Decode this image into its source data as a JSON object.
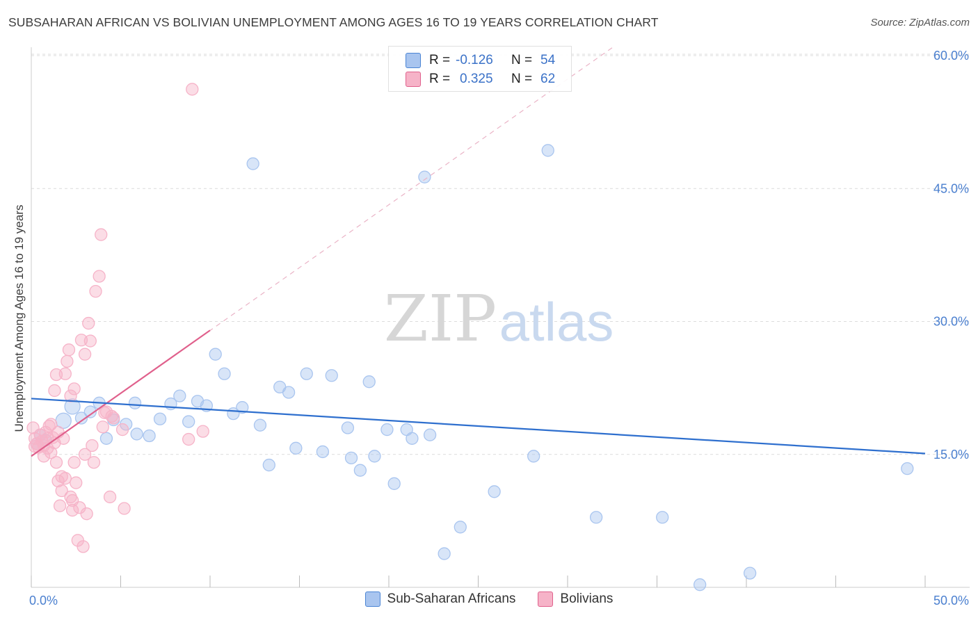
{
  "header": {
    "title": "SUBSAHARAN AFRICAN VS BOLIVIAN UNEMPLOYMENT AMONG AGES 16 TO 19 YEARS CORRELATION CHART",
    "source": "Source: ZipAtlas.com"
  },
  "watermark": {
    "zip": "ZIP",
    "atlas": "atlas"
  },
  "legend": {
    "r_label": "R =",
    "n_label": "N =",
    "rows": [
      {
        "r": "-0.126",
        "n": "54",
        "color": "#a9c5ef"
      },
      {
        "r": "0.325",
        "n": "62",
        "color": "#f6b3c8"
      }
    ]
  },
  "bottom_legend": [
    {
      "label": "Sub-Saharan Africans",
      "color": "#a9c5ef"
    },
    {
      "label": "Bolivians",
      "color": "#f6b3c8"
    }
  ],
  "chart_data": {
    "type": "scatter",
    "title": "SUBSAHARAN AFRICAN VS BOLIVIAN UNEMPLOYMENT AMONG AGES 16 TO 19 YEARS CORRELATION CHART",
    "xlabel": "",
    "ylabel": "Unemployment Among Ages 16 to 19 years",
    "xlim": [
      0,
      50
    ],
    "ylim": [
      0,
      63
    ],
    "x_tick_labels": [
      "0.0%",
      "50.0%"
    ],
    "y_ticks": [
      15,
      30,
      45,
      60
    ],
    "y_tick_labels": [
      "15.0%",
      "30.0%",
      "45.0%",
      "60.0%"
    ],
    "grid": true,
    "series": [
      {
        "name": "Sub-Saharan Africans",
        "color": "#4a84d4",
        "fill": "#a9c5ef",
        "regression": {
          "x": [
            0,
            50
          ],
          "y": [
            21.3,
            15.1
          ]
        },
        "points": [
          [
            0.3,
            16.2
          ],
          [
            0.5,
            17.2
          ],
          [
            0.8,
            16.6
          ],
          [
            1.8,
            18.8
          ],
          [
            2.3,
            20.4
          ],
          [
            2.8,
            19.1
          ],
          [
            3.3,
            19.8
          ],
          [
            3.8,
            20.8
          ],
          [
            4.2,
            16.8
          ],
          [
            4.6,
            18.9
          ],
          [
            5.3,
            18.4
          ],
          [
            5.8,
            20.8
          ],
          [
            5.9,
            17.3
          ],
          [
            6.6,
            17.1
          ],
          [
            7.2,
            19.0
          ],
          [
            7.8,
            20.7
          ],
          [
            8.3,
            21.6
          ],
          [
            8.8,
            18.7
          ],
          [
            9.3,
            21.0
          ],
          [
            9.8,
            20.5
          ],
          [
            10.3,
            26.3
          ],
          [
            10.8,
            24.1
          ],
          [
            11.3,
            19.6
          ],
          [
            11.8,
            20.3
          ],
          [
            12.4,
            47.8
          ],
          [
            12.8,
            18.3
          ],
          [
            13.3,
            13.8
          ],
          [
            13.9,
            22.6
          ],
          [
            14.4,
            22.0
          ],
          [
            14.8,
            15.7
          ],
          [
            15.4,
            24.1
          ],
          [
            16.3,
            15.3
          ],
          [
            16.8,
            23.9
          ],
          [
            17.7,
            18.0
          ],
          [
            17.9,
            14.6
          ],
          [
            18.4,
            13.2
          ],
          [
            18.9,
            23.2
          ],
          [
            19.2,
            14.8
          ],
          [
            19.9,
            17.8
          ],
          [
            20.3,
            11.7
          ],
          [
            21.0,
            17.8
          ],
          [
            21.3,
            16.8
          ],
          [
            22.0,
            46.3
          ],
          [
            22.3,
            17.2
          ],
          [
            23.1,
            3.8
          ],
          [
            24.0,
            6.8
          ],
          [
            25.9,
            10.8
          ],
          [
            28.1,
            14.8
          ],
          [
            28.9,
            49.3
          ],
          [
            31.6,
            7.9
          ],
          [
            35.3,
            7.9
          ],
          [
            37.4,
            0.3
          ],
          [
            40.2,
            1.6
          ],
          [
            49.0,
            13.4
          ]
        ]
      },
      {
        "name": "Bolivians",
        "color": "#e0608c",
        "fill": "#f6b3c8",
        "regression": {
          "x": [
            0,
            10
          ],
          "y": [
            14.8,
            29.0
          ]
        },
        "regression_extended": {
          "x": [
            0,
            32.5
          ],
          "y": [
            14.8,
            60.9
          ]
        },
        "points": [
          [
            0.1,
            18.0
          ],
          [
            0.2,
            16.8
          ],
          [
            0.3,
            16.2
          ],
          [
            0.4,
            15.8
          ],
          [
            0.5,
            17.2
          ],
          [
            0.6,
            16.5
          ],
          [
            0.7,
            14.8
          ],
          [
            0.7,
            16.0
          ],
          [
            0.8,
            17.5
          ],
          [
            0.9,
            16.8
          ],
          [
            1.0,
            18.2
          ],
          [
            1.1,
            18.4
          ],
          [
            1.2,
            16.9
          ],
          [
            1.3,
            16.3
          ],
          [
            1.3,
            22.2
          ],
          [
            1.4,
            24.0
          ],
          [
            1.4,
            14.1
          ],
          [
            1.5,
            17.5
          ],
          [
            1.5,
            12.0
          ],
          [
            1.6,
            9.2
          ],
          [
            1.7,
            12.5
          ],
          [
            1.7,
            10.9
          ],
          [
            1.8,
            16.8
          ],
          [
            1.9,
            24.1
          ],
          [
            1.9,
            12.3
          ],
          [
            2.0,
            25.5
          ],
          [
            2.1,
            26.8
          ],
          [
            2.2,
            10.2
          ],
          [
            2.2,
            21.6
          ],
          [
            2.3,
            9.8
          ],
          [
            2.3,
            8.7
          ],
          [
            2.4,
            14.1
          ],
          [
            2.4,
            22.4
          ],
          [
            2.5,
            11.8
          ],
          [
            2.6,
            5.3
          ],
          [
            2.7,
            9.0
          ],
          [
            2.8,
            27.9
          ],
          [
            2.9,
            4.6
          ],
          [
            3.0,
            15.0
          ],
          [
            3.0,
            26.3
          ],
          [
            3.1,
            8.3
          ],
          [
            3.2,
            29.8
          ],
          [
            3.3,
            27.8
          ],
          [
            3.4,
            16.0
          ],
          [
            3.5,
            14.1
          ],
          [
            3.6,
            33.4
          ],
          [
            3.8,
            35.1
          ],
          [
            3.9,
            39.8
          ],
          [
            4.0,
            18.1
          ],
          [
            4.1,
            19.7
          ],
          [
            4.2,
            19.8
          ],
          [
            4.4,
            10.2
          ],
          [
            4.5,
            19.3
          ],
          [
            4.6,
            19.1
          ],
          [
            5.2,
            8.9
          ],
          [
            8.8,
            16.7
          ],
          [
            9.0,
            56.2
          ],
          [
            9.6,
            17.6
          ],
          [
            5.1,
            17.8
          ],
          [
            0.2,
            15.9
          ],
          [
            1.1,
            15.2
          ],
          [
            0.9,
            15.7
          ]
        ]
      }
    ]
  }
}
